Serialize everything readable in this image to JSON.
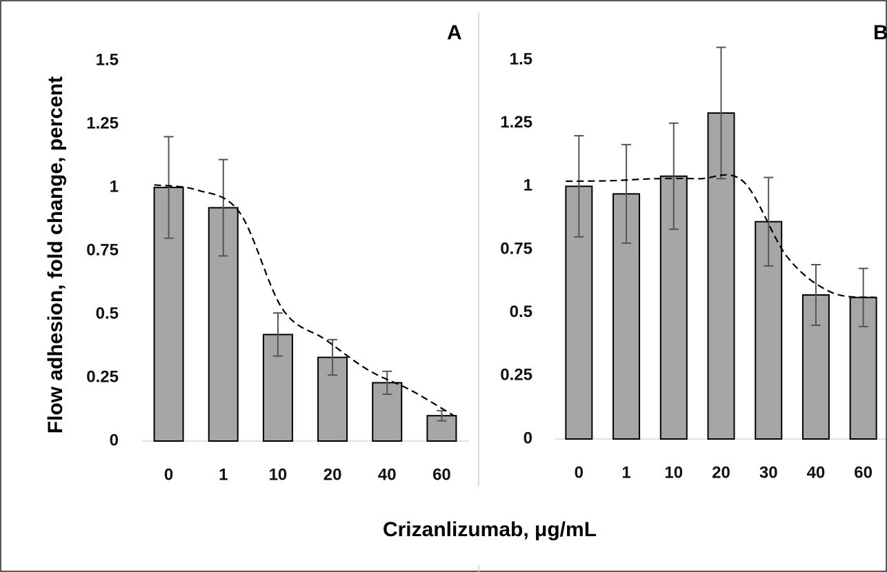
{
  "ylabel": "Flow adhesion, fold change, percent",
  "xlabel": "Crizanlizumab, μg/mL",
  "chart_data": [
    {
      "type": "bar",
      "panel": "A",
      "categories": [
        "0",
        "1",
        "10",
        "20",
        "40",
        "60"
      ],
      "values": [
        1.0,
        0.92,
        0.42,
        0.33,
        0.23,
        0.1
      ],
      "error": [
        0.2,
        0.19,
        0.085,
        0.07,
        0.045,
        0.02
      ],
      "trendline": "dashed",
      "ylim": [
        0,
        1.5
      ],
      "yticks": [
        "0",
        "0.25",
        "0.5",
        "0.75",
        "1",
        "1.25",
        "1.5"
      ],
      "ytick_values": [
        0,
        0.25,
        0.5,
        0.75,
        1,
        1.25,
        1.5
      ],
      "fit": [
        1.01,
        0.99,
        0.9,
        0.52,
        0.4,
        0.28,
        0.2,
        0.1
      ]
    },
    {
      "type": "bar",
      "panel": "B",
      "categories": [
        "0",
        "1",
        "10",
        "20",
        "30",
        "40",
        "60"
      ],
      "values": [
        1.0,
        0.97,
        1.04,
        1.29,
        0.86,
        0.57,
        0.56
      ],
      "error": [
        0.2,
        0.195,
        0.21,
        0.26,
        0.175,
        0.12,
        0.115
      ],
      "trendline": "dashed",
      "ylim": [
        0,
        1.5
      ],
      "yticks": [
        "0",
        "0.25",
        "0.5",
        "0.75",
        "1",
        "1.25",
        "1.5"
      ],
      "ytick_values": [
        0,
        0.25,
        0.5,
        0.75,
        1,
        1.25,
        1.5
      ],
      "fit": [
        1.02,
        1.022,
        1.03,
        1.03,
        1.02,
        0.72,
        0.58,
        0.56
      ]
    }
  ]
}
